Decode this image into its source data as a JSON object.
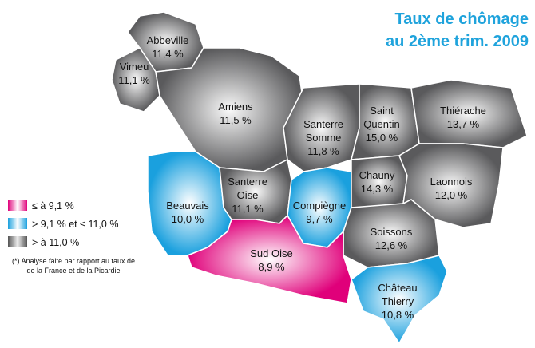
{
  "title": {
    "line1": "Taux de chômage",
    "line2": "au 2ème trim. 2009"
  },
  "regions": [
    {
      "name": [
        "Abbeville"
      ],
      "rate": "11,4 %"
    },
    {
      "name": [
        "Vimeu"
      ],
      "rate": "11,1 %"
    },
    {
      "name": [
        "Amiens"
      ],
      "rate": "11,5 %"
    },
    {
      "name": [
        "Santerre",
        "Somme"
      ],
      "rate": "11,8 %"
    },
    {
      "name": [
        "Saint",
        "Quentin"
      ],
      "rate": "15,0 %"
    },
    {
      "name": [
        "Thiérache"
      ],
      "rate": "13,7 %"
    },
    {
      "name": [
        "Beauvais"
      ],
      "rate": "10,0 %"
    },
    {
      "name": [
        "Santerre",
        "Oise"
      ],
      "rate": "11,1 %"
    },
    {
      "name": [
        "Compiègne"
      ],
      "rate": "9,7 %"
    },
    {
      "name": [
        "Chauny"
      ],
      "rate": "14,3 %"
    },
    {
      "name": [
        "Laonnois"
      ],
      "rate": "12,0 %"
    },
    {
      "name": [
        "Soissons"
      ],
      "rate": "12,6 %"
    },
    {
      "name": [
        "Sud Oise"
      ],
      "rate": "8,9 %"
    },
    {
      "name": [
        "Château",
        "Thierry"
      ],
      "rate": "10,8 %"
    }
  ],
  "legend": [
    "≤ à 9,1 %",
    "> 9,1 % et ≤ 11,0 %",
    "> à 11,0 %"
  ],
  "note": [
    "(*) Analyse faite par rapport au taux de",
    "de la France et de la Picardie"
  ]
}
